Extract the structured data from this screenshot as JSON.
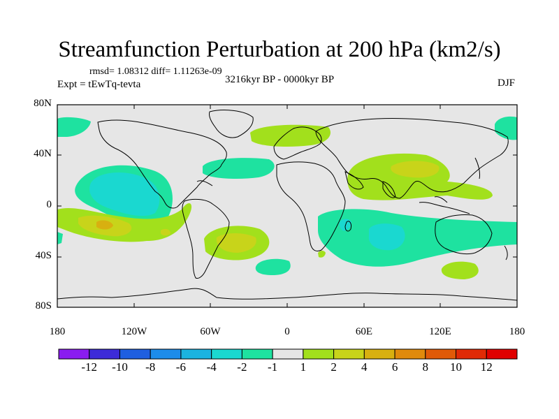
{
  "title": "Streamfunction Perturbation at 200 hPa (km2/s)",
  "stats": "rmsd= 1.08312 diff= 1.11263e-09",
  "period": "3216kyr BP - 0000kyr BP",
  "experiment": "Expt = tEwTq-tevta",
  "season": "DJF",
  "axes": {
    "lat_ticks": [
      "80N",
      "40N",
      "0",
      "40S",
      "80S"
    ],
    "lon_ticks": [
      "180",
      "120W",
      "60W",
      "0",
      "60E",
      "120E",
      "180"
    ]
  },
  "colorbar": {
    "labels": [
      "-12",
      "-10",
      "-8",
      "-6",
      "-4",
      "-2",
      "-1",
      "1",
      "2",
      "4",
      "6",
      "8",
      "10",
      "12"
    ],
    "colors": [
      "#8a1cf0",
      "#3d2bd8",
      "#1f5fe0",
      "#1d8cea",
      "#1bb3e0",
      "#1ad8d0",
      "#1ee2a0",
      "#e6e6e6",
      "#a2e01c",
      "#c8d41a",
      "#d8b010",
      "#e08a0c",
      "#e05a08",
      "#e02a06",
      "#e00000"
    ]
  }
}
